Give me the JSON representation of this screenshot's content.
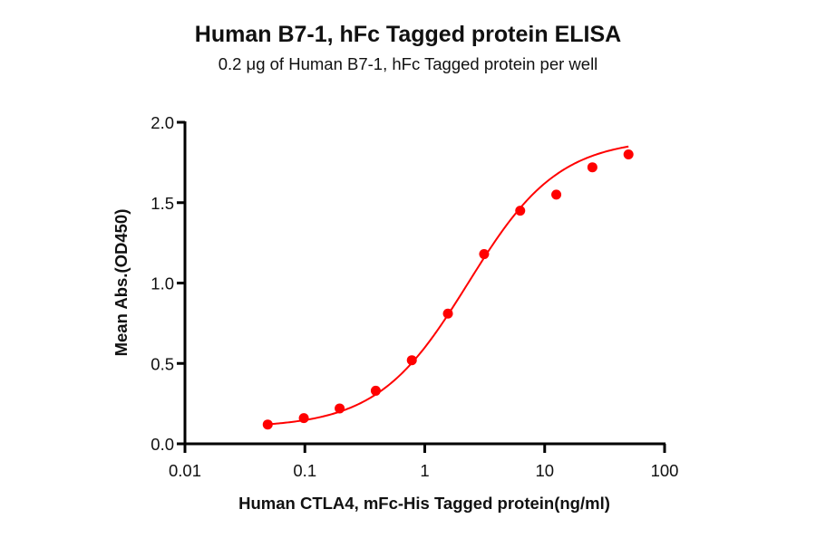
{
  "chart_data": {
    "type": "scatter",
    "title": "Human B7-1, hFc Tagged protein ELISA",
    "subtitle": "0.2 μg of Human B7-1, hFc Tagged protein per well",
    "xlabel": "Human CTLA4, mFc-His Tagged protein(ng/ml)",
    "ylabel": "Mean Abs.(OD450)",
    "xscale": "log",
    "xlim": [
      0.01,
      100
    ],
    "ylim": [
      0.0,
      2.0
    ],
    "xticks": [
      "0.01",
      "0.1",
      "1",
      "10",
      "100"
    ],
    "yticks": [
      "0.0",
      "0.5",
      "1.0",
      "1.5",
      "2.0"
    ],
    "grid": false,
    "legend": null,
    "series": [
      {
        "name": "Human CTLA4, mFc-His Tagged protein",
        "color": "#ff0000",
        "marker": "circle",
        "fit": "4PL sigmoid",
        "x": [
          0.049,
          0.098,
          0.195,
          0.39,
          0.78,
          1.56,
          3.125,
          6.25,
          12.5,
          25,
          50
        ],
        "y": [
          0.12,
          0.16,
          0.22,
          0.33,
          0.52,
          0.81,
          1.18,
          1.45,
          1.55,
          1.72,
          1.8
        ]
      }
    ]
  }
}
